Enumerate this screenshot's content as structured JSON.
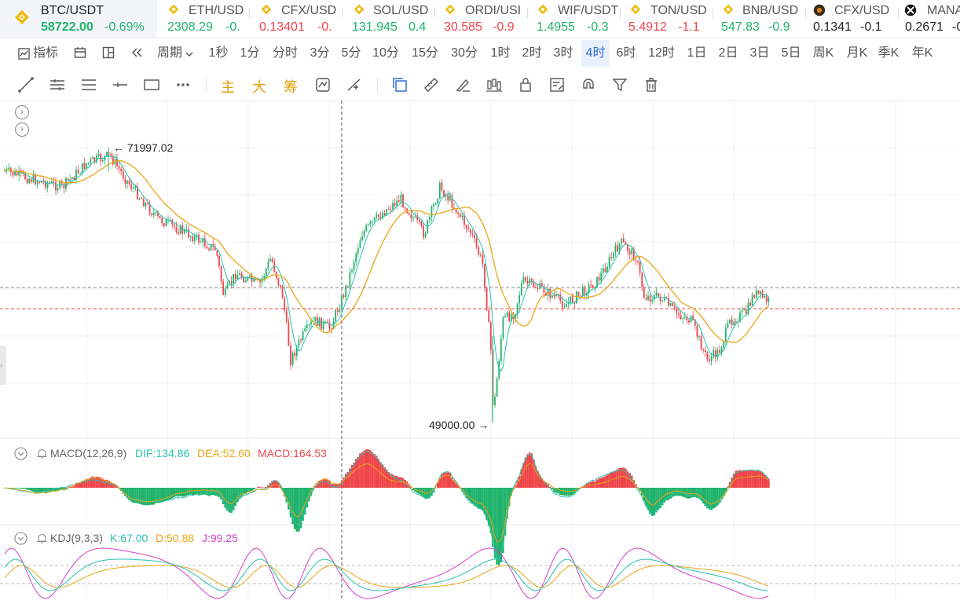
{
  "tickers": [
    {
      "symbol": "BTC/USDT",
      "price": "58722.00",
      "change": "-0.69%",
      "dir": "up",
      "active": true,
      "coin_icon": "bnb-icon"
    },
    {
      "symbol": "ETH/USD",
      "price": "2308.29",
      "change": "-0.",
      "dir": "up",
      "coin_icon": "bnb-icon"
    },
    {
      "symbol": "CFX/USD",
      "price": "0.13401",
      "change": "-0.",
      "dir": "down",
      "coin_icon": "bnb-icon"
    },
    {
      "symbol": "SOL/USD",
      "price": "131.945",
      "change": "0.4",
      "dir": "up",
      "coin_icon": "bnb-icon"
    },
    {
      "symbol": "ORDI/USI",
      "price": "30.585",
      "change": "-0.9",
      "dir": "down",
      "coin_icon": "bnb-icon"
    },
    {
      "symbol": "WIF/USDT",
      "price": "1.4955",
      "change": "-0.3",
      "dir": "up",
      "coin_icon": "bnb-icon"
    },
    {
      "symbol": "TON/USD",
      "price": "5.4912",
      "change": "-1.1",
      "dir": "down",
      "coin_icon": "bnb-icon"
    },
    {
      "symbol": "BNB/USD",
      "price": "547.83",
      "change": "-0.9",
      "dir": "up",
      "coin_icon": "bnb-icon"
    },
    {
      "symbol": "CFX/USD",
      "price": "0.1341",
      "change": "-0.1",
      "dir": "neutral",
      "coin_icon": "conflux-icon"
    },
    {
      "symbol": "MANA",
      "price": "0.2671",
      "change": "-0.",
      "dir": "neutral",
      "coin_icon": "decentraland-icon"
    }
  ],
  "interval_bar": {
    "indicator_label": "指标",
    "period_label": "周期",
    "intervals": [
      "1秒",
      "1分",
      "分时",
      "3分",
      "5分",
      "10分",
      "15分",
      "30分",
      "1时",
      "2时",
      "3时",
      "4时",
      "6时",
      "12时",
      "1日",
      "2日",
      "3日",
      "5日",
      "周K",
      "月K",
      "季K",
      "年K"
    ],
    "selected": "4时"
  },
  "tools": {
    "main_label": "主",
    "big_label": "大",
    "chip_label": "筹"
  },
  "chart": {
    "high_label": "71997.02",
    "low_label": "49000.00",
    "colors": {
      "up": "#20b26c",
      "down": "#ef454a",
      "ma": "#e8a617",
      "ema": "#28c3b0",
      "kdj_k": "#28c3b0",
      "kdj_d": "#e8a617",
      "kdj_j": "#d43fc9"
    }
  },
  "macd": {
    "name": "MACD(12,26,9)",
    "dif": "DIF:134.86",
    "dea": "DEA:52.60",
    "macd": "MACD:164.53"
  },
  "kdj": {
    "name": "KDJ(9,3,3)",
    "k": "K:67.00",
    "d": "D:50.88",
    "j": "J:99.25"
  },
  "bell_icon": "bell-icon",
  "collapse_icons": [
    "chevron-right-icon",
    "chevron-right-icon"
  ]
}
